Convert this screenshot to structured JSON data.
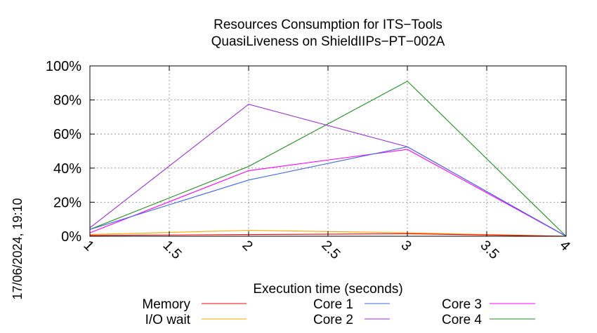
{
  "chart_data": {
    "type": "line",
    "title": [
      "Resources Consumption for ITS−Tools",
      "QuasiLiveness on ShieldIIPs−PT−002A"
    ],
    "xlabel": "Execution time (seconds)",
    "ylabel": "",
    "side_label": "17/06/2024, 19:10",
    "xlim": [
      1,
      4
    ],
    "ylim": [
      0,
      100
    ],
    "xticks": [
      1,
      1.5,
      2,
      2.5,
      3,
      3.5,
      4
    ],
    "xtick_labels": [
      "1",
      "1.5",
      "2",
      "2.5",
      "3",
      "3.5",
      "4"
    ],
    "yticks": [
      0,
      20,
      40,
      60,
      80,
      100
    ],
    "ytick_labels": [
      "0%",
      "20%",
      "40%",
      "60%",
      "80%",
      "100%"
    ],
    "grid": true,
    "legend_position": "bottom",
    "series": [
      {
        "name": "Memory",
        "color": "#ff0000",
        "x": [
          1,
          2,
          3,
          4
        ],
        "y": [
          0.5,
          1,
          1.5,
          0
        ]
      },
      {
        "name": "I/O wait",
        "color": "#ffa500",
        "x": [
          1,
          2,
          3,
          4
        ],
        "y": [
          1,
          3.5,
          2,
          0
        ]
      },
      {
        "name": "Core 1",
        "color": "#4169e1",
        "x": [
          1,
          2,
          3,
          4
        ],
        "y": [
          4,
          33,
          52.5,
          0
        ]
      },
      {
        "name": "Core 2",
        "color": "#9932cc",
        "x": [
          1,
          2,
          3,
          4
        ],
        "y": [
          5,
          77.5,
          52.5,
          0
        ]
      },
      {
        "name": "Core 3",
        "color": "#ff00ff",
        "x": [
          1,
          2,
          3,
          4
        ],
        "y": [
          2,
          38.5,
          51,
          0
        ]
      },
      {
        "name": "Core 4",
        "color": "#228b22",
        "x": [
          1,
          2,
          3,
          4
        ],
        "y": [
          4,
          41,
          91,
          0
        ]
      }
    ]
  }
}
